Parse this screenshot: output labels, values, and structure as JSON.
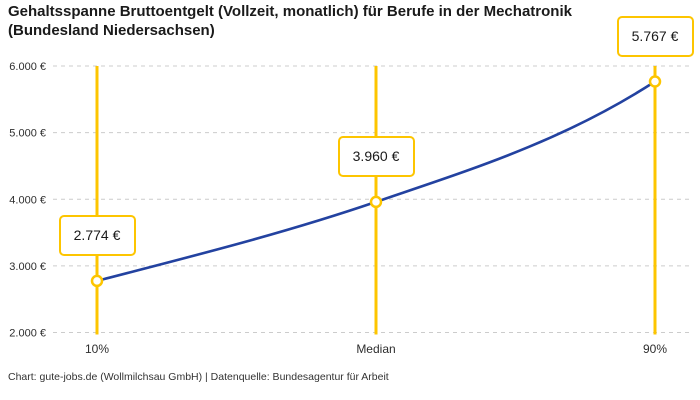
{
  "title": "Gehaltsspanne Bruttoentgelt (Vollzeit, monatlich) für Berufe in der Mechatronik (Bundesland Niedersachsen)",
  "footer": "Chart: gute-jobs.de (Wollmilchsau GmbH) | Datenquelle: Bundesagentur für Arbeit",
  "chart_data": {
    "type": "line",
    "categories": [
      "10%",
      "Median",
      "90%"
    ],
    "values": [
      2774,
      3960,
      5767
    ],
    "value_labels": [
      "2.774 €",
      "3.960 €",
      "5.767 €"
    ],
    "ylim": [
      2000,
      6000
    ],
    "y_ticks": [
      6000,
      5000,
      4000,
      3000,
      2000
    ],
    "y_tick_labels": [
      "6.000 €",
      "5.000 €",
      "4.000 €",
      "3.000 €",
      "2.000 €"
    ],
    "grid": "horizontal-dashed",
    "legend": "none",
    "colors": {
      "line": "#2342a0",
      "range": "#fdc500",
      "grid": "#cccccc",
      "title_text": "#1a1a1a",
      "tick_text": "#2e2e2e",
      "footer_text": "#333333"
    }
  }
}
